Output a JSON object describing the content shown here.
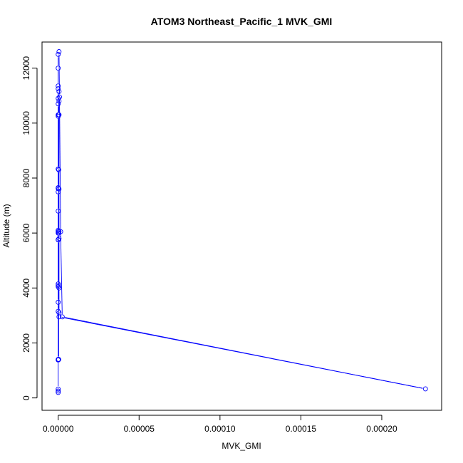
{
  "chart_data": {
    "type": "line",
    "title": "ATOM3 Northeast_Pacific_1 MVK_GMI",
    "xlabel": "MVK_GMI",
    "ylabel": "Altitude (m)",
    "xlim": [
      -1e-05,
      0.000237
    ],
    "ylim": [
      -450,
      12950
    ],
    "x_ticks": [
      0,
      5e-05,
      0.0001,
      0.00015,
      0.0002
    ],
    "x_tick_labels": [
      "0.00000",
      "0.00005",
      "0.00010",
      "0.00015",
      "0.00020"
    ],
    "y_ticks": [
      0,
      2000,
      4000,
      6000,
      8000,
      10000,
      12000
    ],
    "y_tick_labels": [
      "0",
      "2000",
      "4000",
      "6000",
      "8000",
      "10000",
      "12000"
    ],
    "grid": false,
    "legend": "none",
    "series": [
      {
        "color": "#0000ff",
        "marker": "open-circle",
        "x": [
          0,
          0,
          0,
          0,
          0,
          0,
          0,
          0,
          0,
          0,
          0,
          0,
          0,
          0,
          0,
          0,
          0,
          0,
          0,
          0,
          0,
          0,
          0,
          0,
          0,
          0,
          0,
          0,
          5e-07,
          8e-07,
          1.5e-06,
          2.5e-06,
          0.000227,
          5e-07,
          5e-07,
          5e-07,
          5e-07,
          5e-07,
          5e-07,
          5e-07,
          5e-07,
          5e-07,
          3e-07,
          3e-07,
          3e-07,
          3e-07
        ],
        "y": [
          200,
          250,
          320,
          1380,
          1400,
          3150,
          3480,
          4050,
          4100,
          4150,
          5750,
          5760,
          6000,
          6100,
          6050,
          6800,
          7500,
          7620,
          7650,
          8330,
          10250,
          10300,
          10700,
          10900,
          11250,
          11350,
          12000,
          12500,
          12600,
          10950,
          6050,
          2950,
          330,
          2950,
          3100,
          4000,
          5800,
          6050,
          7600,
          10300,
          10800,
          11150,
          10300,
          8300,
          6000,
          1400
        ]
      }
    ]
  }
}
